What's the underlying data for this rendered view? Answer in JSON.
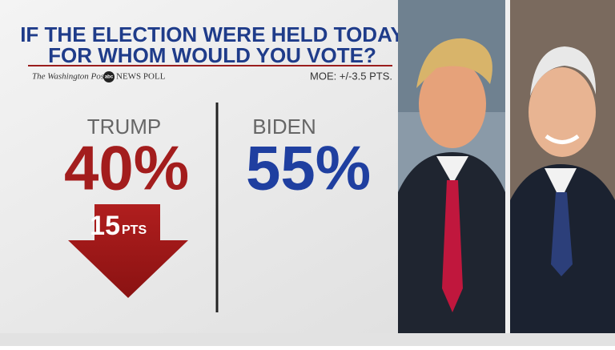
{
  "header": {
    "title_line1": "IF THE ELECTION WERE HELD TODAY",
    "title_line2": "FOR WHOM WOULD YOU VOTE?",
    "source_newspaper": "The Washington Post",
    "source_network": "abc",
    "source_poll": "NEWS POLL",
    "moe": "MOE: +/-3.5 PTS."
  },
  "candidates": [
    {
      "name": "TRUMP",
      "percent": "40%",
      "deficit": "15",
      "deficit_unit": "PTS"
    },
    {
      "name": "BIDEN",
      "percent": "55%"
    }
  ]
}
